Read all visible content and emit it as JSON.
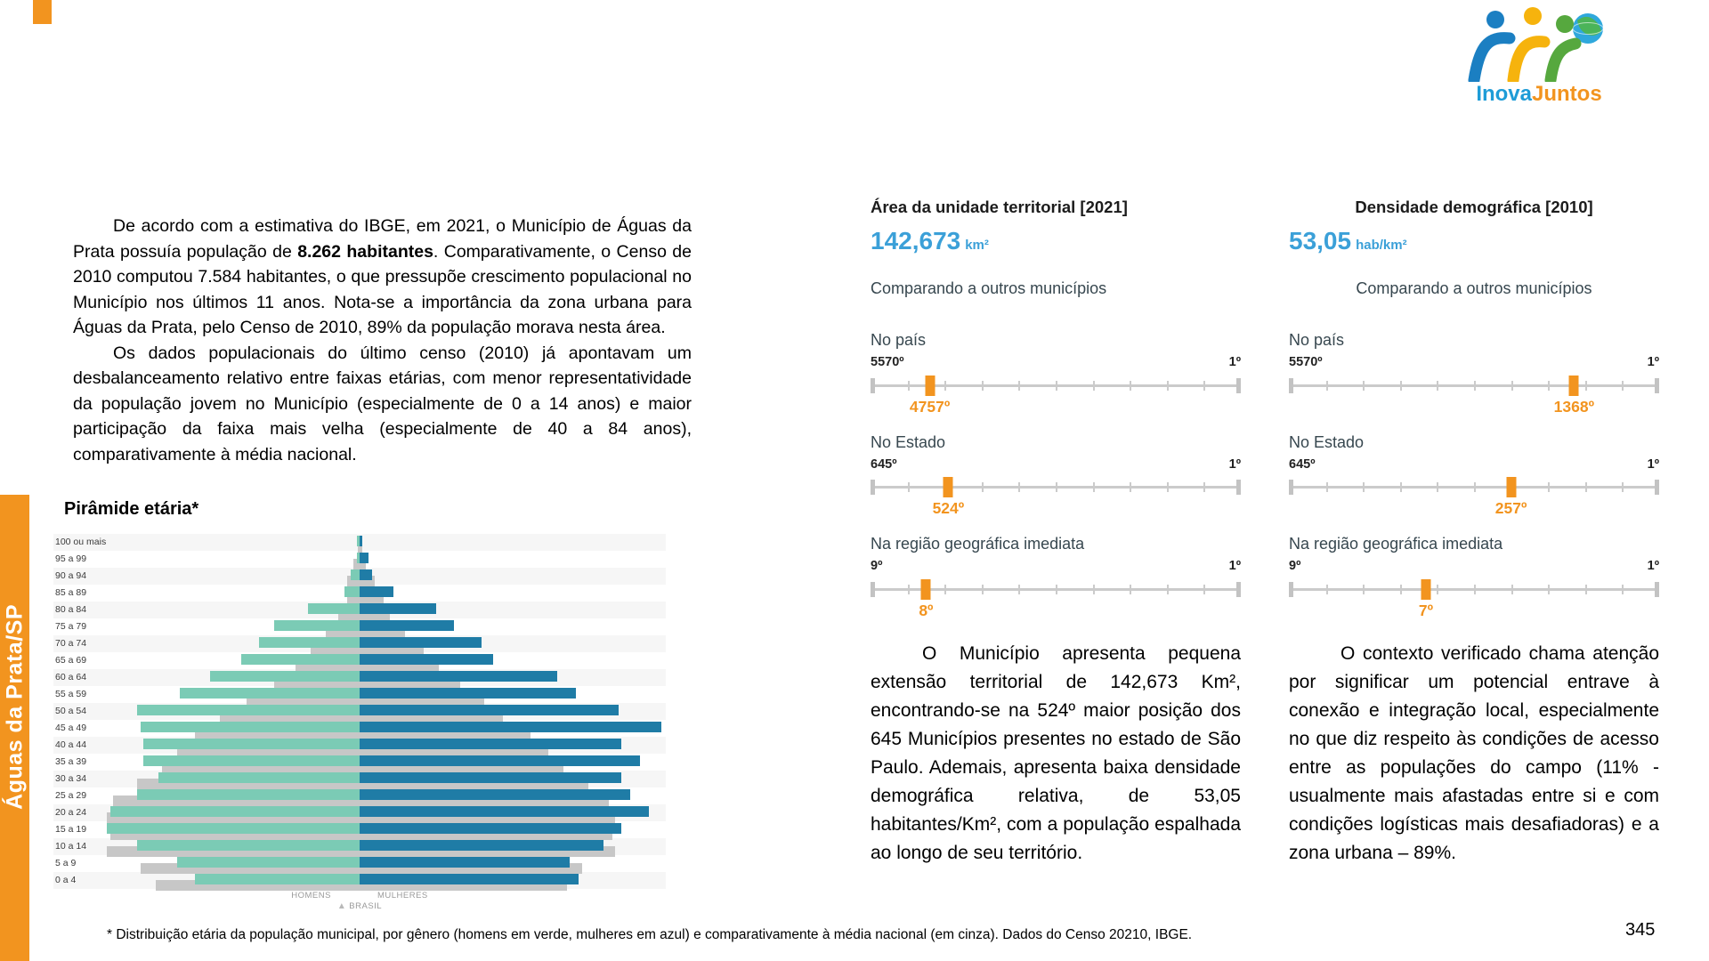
{
  "colors": {
    "orange": "#F2941F",
    "value_blue": "#3BA0D8",
    "logo_blue": "#1E9CD7",
    "pyramid_men_green": "#7BCBB5",
    "pyramid_women_blue": "#1F7CA6",
    "pyramid_brazil_gray": "#C7C7C7"
  },
  "sidebar": {
    "label": "Águas da Prata/SP"
  },
  "logo": {
    "word1": "Inova",
    "word2": "Juntos"
  },
  "intro": {
    "p1_pre": "De acordo com a estimativa do IBGE, em 2021, o Município de Águas da Prata possuía população de ",
    "p1_bold": "8.262 habitantes",
    "p1_post": ". Comparativamente, o Censo de 2010 computou 7.584 habitantes, o que pressupõe crescimento populacional no Município nos últimos 11 anos. Nota-se a importância da zona urbana para Águas da Prata, pelo Censo de 2010, 89% da população morava nesta área.",
    "p2": "Os dados populacionais do último censo (2010) já apontavam um desbalanceamento relativo entre faixas etárias, com menor representatividade da população jovem no Município (especialmente de 0 a 14 anos) e maior participação da faixa mais velha (especialmente de 40 a 84 anos), comparativamente à média nacional."
  },
  "pyramid": {
    "title": "Pirâmide etária*",
    "legend": {
      "men": "HOMENS",
      "women": "MULHERES",
      "brazil": "BRASIL"
    },
    "chart_data": {
      "type": "bar",
      "subtype": "population-pyramid",
      "title": "Pirâmide etária*",
      "unit": "percent of half-axis (relative bar length, estimated from pixels)",
      "categories": [
        "100 ou mais",
        "95 a 99",
        "90 a 94",
        "85 a 89",
        "80 a 84",
        "75 a 79",
        "70 a 74",
        "65 a 69",
        "60 a 64",
        "55 a 59",
        "50 a 54",
        "45 a 49",
        "40 a 44",
        "35 a 39",
        "30 a 34",
        "25 a 29",
        "20 a 24",
        "15 a 19",
        "10 a 14",
        "5 a 9",
        "0 a 4"
      ],
      "series": [
        {
          "name": "Homens (município, verde)",
          "values": [
            1,
            1,
            3,
            5,
            17,
            28,
            33,
            39,
            49,
            59,
            73,
            72,
            71,
            71,
            66,
            73,
            82,
            83,
            73,
            60,
            54
          ]
        },
        {
          "name": "Mulheres (município, azul)",
          "values": [
            1,
            3,
            4,
            11,
            25,
            31,
            40,
            44,
            65,
            71,
            85,
            99,
            86,
            92,
            86,
            89,
            95,
            86,
            80,
            69,
            72
          ]
        },
        {
          "name": "Brasil homens (cinza)",
          "values": [
            0.5,
            2,
            4,
            4,
            7,
            11,
            16,
            21,
            28,
            37,
            46,
            54,
            60,
            65,
            73,
            81,
            83,
            82,
            83,
            72,
            67
          ]
        },
        {
          "name": "Brasil mulheres (cinza)",
          "values": [
            1,
            2,
            5,
            8,
            10,
            15,
            21,
            26,
            33,
            41,
            47,
            56,
            62,
            67,
            75,
            82,
            84,
            83,
            84,
            73,
            68
          ]
        }
      ],
      "legend_position": "bottom-center",
      "grid": false
    }
  },
  "panels": [
    {
      "title": "Área da unidade territorial [2021]",
      "value": "142,673",
      "unit": "km²",
      "compare_label": "Comparando a outros municípios",
      "sliders": [
        {
          "label": "No país",
          "left": "5570º",
          "right": "1º",
          "marker": "4757º",
          "pos_pct": 16
        },
        {
          "label": "No Estado",
          "left": "645º",
          "right": "1º",
          "marker": "524º",
          "pos_pct": 21
        },
        {
          "label": "Na região geográfica imediata",
          "left": "9º",
          "right": "1º",
          "marker": "8º",
          "pos_pct": 15
        }
      ],
      "paragraph": "O Município apresenta pequena extensão territorial de 142,673 Km², encontrando-se na 524º maior posição dos 645 Municípios presentes no estado de São Paulo. Ademais, apresenta baixa densidade demográfica relativa, de 53,05 habitantes/Km², com a população espalhada ao longo de seu território."
    },
    {
      "title": "Densidade demográfica [2010]",
      "value": "53,05",
      "unit": "hab/km²",
      "compare_label": "Comparando a outros municípios",
      "sliders": [
        {
          "label": "No país",
          "left": "5570º",
          "right": "1º",
          "marker": "1368º",
          "pos_pct": 77
        },
        {
          "label": "No Estado",
          "left": "645º",
          "right": "1º",
          "marker": "257º",
          "pos_pct": 60
        },
        {
          "label": "Na região geográfica imediata",
          "left": "9º",
          "right": "1º",
          "marker": "7º",
          "pos_pct": 37
        }
      ],
      "paragraph": "O contexto verificado chama atenção por significar um potencial entrave à conexão e integração local, especialmente no que diz respeito às condições de acesso entre as populações do campo (11% - usualmente mais afastadas entre si e com condições logísticas mais desafiadoras) e a zona urbana – 89%."
    }
  ],
  "footer": {
    "footnote": "* Distribuição etária da população municipal, por gênero (homens em verde, mulheres em azul) e comparativamente à média nacional (em cinza). Dados do Censo 20210, IBGE.",
    "page_number": "345"
  }
}
